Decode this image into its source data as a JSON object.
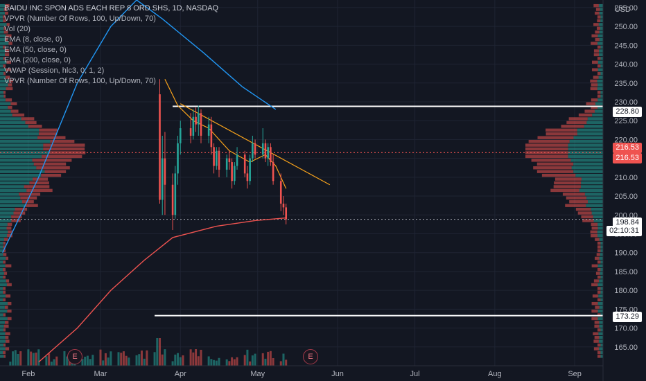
{
  "symbol": {
    "title": "BAIDU INC SPON ADS EACH REP 8 ORD SHS, 1D, NASDAQ",
    "indicators": [
      "VPVR (Number Of Rows, 100, Up/Down, 70)",
      "Vol (20)",
      "EMA (8, close, 0)",
      "EMA (50, close, 0)",
      "EMA (200, close, 0)",
      "VWAP (Session, hlc3, 0, 1, 2)",
      "VPVR (Number Of Rows, 100, Up/Down, 70)"
    ]
  },
  "price_axis": {
    "currency": "USD"
  },
  "tags": {
    "resistance": "228.80",
    "poc_left": "216.53",
    "poc_right": "216.53",
    "last_price": "198.84",
    "countdown": "02:10:31",
    "support": "173.29"
  },
  "earnings_marker": "E",
  "colors": {
    "background": "#131722",
    "up": "#26a69a",
    "down": "#ef5350",
    "ema8": "#f7a21b",
    "ema50": "#2196f3",
    "ema200": "#ef5350",
    "trendline": "#f7a21b",
    "level_line": "#ffffff"
  },
  "chart_data": {
    "type": "candlestick",
    "title": "BAIDU INC SPON ADS EACH REP 8 ORD SHS, 1D, NASDAQ",
    "ylim": [
      160,
      257
    ],
    "yticks": [
      165,
      170,
      175,
      180,
      185,
      190,
      195,
      200,
      205,
      210,
      215,
      220,
      225,
      230,
      235,
      240,
      245,
      250,
      255
    ],
    "ytick_labels": [
      "165.00",
      "170.00",
      "175.00",
      "180.00",
      "185.00",
      "190.00",
      "195.00",
      "200.00",
      "205.00",
      "210.00",
      "215.00",
      "220.00",
      "225.00",
      "230.00",
      "235.00",
      "240.00",
      "245.00",
      "250.00",
      "255.00"
    ],
    "xlim": [
      "2021-01-21",
      "2021-09-12"
    ],
    "xticks": [
      {
        "date": "2021-02-01",
        "label": "Feb"
      },
      {
        "date": "2021-03-01",
        "label": "Mar"
      },
      {
        "date": "2021-04-01",
        "label": "Apr"
      },
      {
        "date": "2021-05-01",
        "label": "May"
      },
      {
        "date": "2021-06-01",
        "label": "Jun"
      },
      {
        "date": "2021-07-01",
        "label": "Jul"
      },
      {
        "date": "2021-08-01",
        "label": "Aug"
      },
      {
        "date": "2021-09-01",
        "label": "Sep"
      }
    ],
    "horizontal_levels": [
      {
        "price": 228.8,
        "from": "2021-03-29",
        "style": "solid"
      },
      {
        "price": 216.53,
        "style": "dotted",
        "color": "#ef5350"
      },
      {
        "price": 198.84,
        "style": "dotted",
        "color": "#9598a1"
      },
      {
        "price": 173.29,
        "from": "2021-03-22",
        "style": "solid"
      }
    ],
    "trendline": {
      "from": {
        "date": "2021-04-01",
        "price": 229.5
      },
      "to": {
        "date": "2021-05-29",
        "price": 208.0
      }
    },
    "candles": [
      [
        "2021-03-24",
        232.0,
        236.0,
        203.0,
        204.0
      ],
      [
        "2021-03-25",
        204.0,
        221.0,
        200.0,
        215.0
      ],
      [
        "2021-03-26",
        215.0,
        222.0,
        200.0,
        208.0
      ],
      [
        "2021-03-29",
        208.0,
        211.0,
        196.0,
        200.0
      ],
      [
        "2021-03-30",
        200.0,
        213.0,
        199.0,
        211.0
      ],
      [
        "2021-03-31",
        211.0,
        221.0,
        208.0,
        219.0
      ],
      [
        "2021-04-01",
        219.0,
        225.0,
        216.0,
        223.0
      ],
      [
        "2021-04-05",
        223.0,
        227.0,
        219.0,
        221.0
      ],
      [
        "2021-04-06",
        221.0,
        228.0,
        220.0,
        226.0
      ],
      [
        "2021-04-07",
        226.0,
        228.5,
        222.0,
        224.0
      ],
      [
        "2021-04-08",
        224.0,
        229.0,
        221.0,
        227.0
      ],
      [
        "2021-04-09",
        227.0,
        228.0,
        219.0,
        221.0
      ],
      [
        "2021-04-12",
        221.0,
        226.0,
        219.0,
        224.0
      ],
      [
        "2021-04-13",
        224.0,
        226.0,
        216.0,
        218.0
      ],
      [
        "2021-04-14",
        218.0,
        219.0,
        211.0,
        213.0
      ],
      [
        "2021-04-15",
        213.0,
        218.0,
        212.0,
        217.0
      ],
      [
        "2021-04-16",
        217.0,
        218.0,
        210.0,
        212.0
      ],
      [
        "2021-04-19",
        212.0,
        216.0,
        210.0,
        215.0
      ],
      [
        "2021-04-20",
        215.0,
        217.0,
        212.0,
        214.0
      ],
      [
        "2021-04-21",
        214.0,
        215.0,
        207.0,
        209.0
      ],
      [
        "2021-04-22",
        209.0,
        214.0,
        208.0,
        213.0
      ],
      [
        "2021-04-23",
        213.0,
        218.0,
        212.0,
        216.0
      ],
      [
        "2021-04-26",
        216.0,
        217.0,
        210.0,
        211.0
      ],
      [
        "2021-04-27",
        211.0,
        213.0,
        207.0,
        209.0
      ],
      [
        "2021-04-28",
        209.0,
        216.0,
        208.0,
        215.0
      ],
      [
        "2021-04-29",
        215.0,
        221.0,
        214.0,
        219.0
      ],
      [
        "2021-04-30",
        219.0,
        220.0,
        215.0,
        216.0
      ],
      [
        "2021-05-03",
        216.0,
        223.0,
        215.0,
        219.0
      ],
      [
        "2021-05-04",
        219.0,
        220.0,
        214.0,
        215.0
      ],
      [
        "2021-05-05",
        215.0,
        219.0,
        213.0,
        218.0
      ],
      [
        "2021-05-06",
        218.0,
        219.0,
        213.0,
        214.0
      ],
      [
        "2021-05-07",
        214.0,
        216.0,
        208.0,
        209.0
      ],
      [
        "2021-05-10",
        209.0,
        211.0,
        201.0,
        203.0
      ],
      [
        "2021-05-11",
        203.0,
        205.0,
        200.0,
        202.0
      ],
      [
        "2021-05-12",
        202.0,
        203.0,
        197.5,
        198.84
      ]
    ]
  }
}
